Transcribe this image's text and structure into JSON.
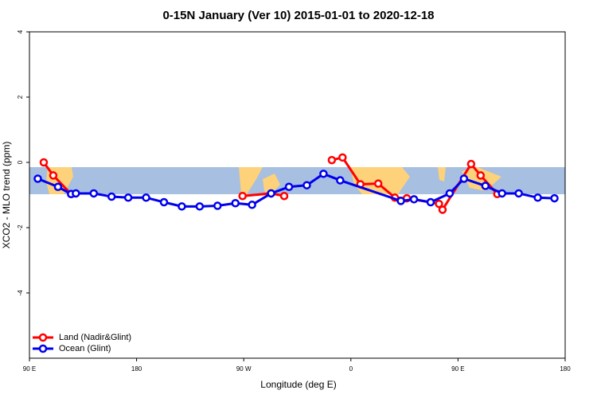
{
  "chart_data": {
    "type": "line",
    "title": "0-15N January (Ver 10)   2015-01-01 to 2020-12-18",
    "x_label": "Longitude (deg E)",
    "y_label": "XCO2 - MLO trend (ppm)",
    "xlim": [
      90,
      540
    ],
    "xticks": [
      {
        "value": 90,
        "label": "90 E"
      },
      180,
      {
        "value": 270,
        "label": "90 W"
      },
      {
        "value": 360,
        "label": "0"
      },
      {
        "value": 450,
        "label": "90 E"
      },
      {
        "value": 540,
        "label": "180"
      }
    ],
    "ylim": [
      -6,
      4
    ],
    "yticks": [
      -4,
      -2,
      0,
      2,
      4
    ],
    "legend": "bottom-left",
    "series": [
      {
        "name": "Land (Nadir&Glint)",
        "color": "#ff0000",
        "x": [
          102,
          110,
          125,
          null,
          269,
          293,
          304,
          null,
          344,
          353,
          368,
          383,
          397,
          407,
          434,
          437,
          461,
          469,
          483
        ],
        "values": [
          0,
          -0.4,
          -0.97,
          null,
          -1.03,
          -0.95,
          -1.03,
          null,
          0.07,
          0.15,
          -0.67,
          -0.65,
          -1.08,
          -1.1,
          -1.27,
          -1.45,
          -0.05,
          -0.4,
          -0.97
        ]
      },
      {
        "name": "Ocean (Glint)",
        "color": "#0000ee",
        "x": [
          97,
          114,
          125,
          129,
          144,
          159,
          173,
          188,
          203,
          218,
          233,
          248,
          263,
          277,
          293,
          308,
          323,
          337,
          351,
          402,
          413,
          427,
          443,
          455,
          473,
          487,
          501,
          517,
          531
        ],
        "values": [
          -0.5,
          -0.75,
          -0.97,
          -0.95,
          -0.95,
          -1.05,
          -1.08,
          -1.08,
          -1.22,
          -1.35,
          -1.35,
          -1.33,
          -1.25,
          -1.3,
          -0.95,
          -0.75,
          -0.7,
          -0.35,
          -0.55,
          -1.18,
          -1.13,
          -1.22,
          -0.95,
          -0.5,
          -0.72,
          -0.95,
          -0.95,
          -1.08,
          -1.1
        ]
      }
    ]
  }
}
